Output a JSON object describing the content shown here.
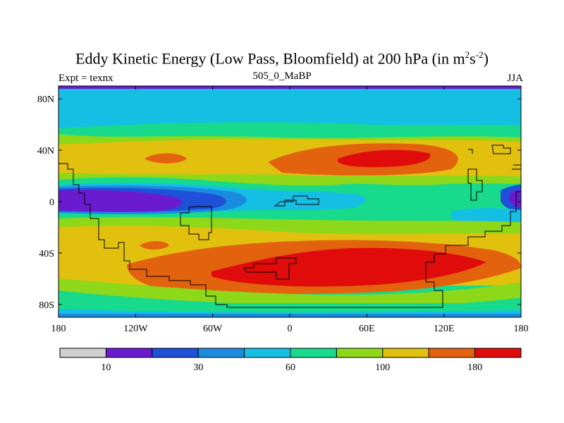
{
  "title": {
    "main": "Eddy Kinetic Energy (Low Pass, Bloomfield) at 200 hPa (in m",
    "sup1": "2",
    "mid": "s",
    "sup2": "-2",
    "end": ")"
  },
  "left_label": "Expt = texnx",
  "center_label": "505_0_MaBP",
  "right_label": "JJA",
  "map": {
    "projection": "cylindrical-equidistant",
    "lon_range": [
      -180,
      180
    ],
    "lat_range": [
      -90,
      90
    ],
    "field": "eddy kinetic energy",
    "lat_ticks": [
      "80N",
      "40N",
      "0",
      "40S",
      "80S"
    ],
    "lat_tick_values": [
      80,
      40,
      0,
      -40,
      -80
    ],
    "lon_ticks": [
      "180",
      "120W",
      "60W",
      "0",
      "60E",
      "120E",
      "180"
    ],
    "lon_tick_values": [
      -180,
      -120,
      -60,
      0,
      60,
      120,
      180
    ]
  },
  "colorbar": {
    "colors": [
      "#d0d0d0",
      "#6a1bd0",
      "#1e50d8",
      "#1a8ce0",
      "#15bfe3",
      "#17da8c",
      "#8ed81a",
      "#e2c10e",
      "#e3620e",
      "#e00b0b"
    ],
    "labels": [
      "10",
      "30",
      "60",
      "100",
      "180"
    ]
  }
}
